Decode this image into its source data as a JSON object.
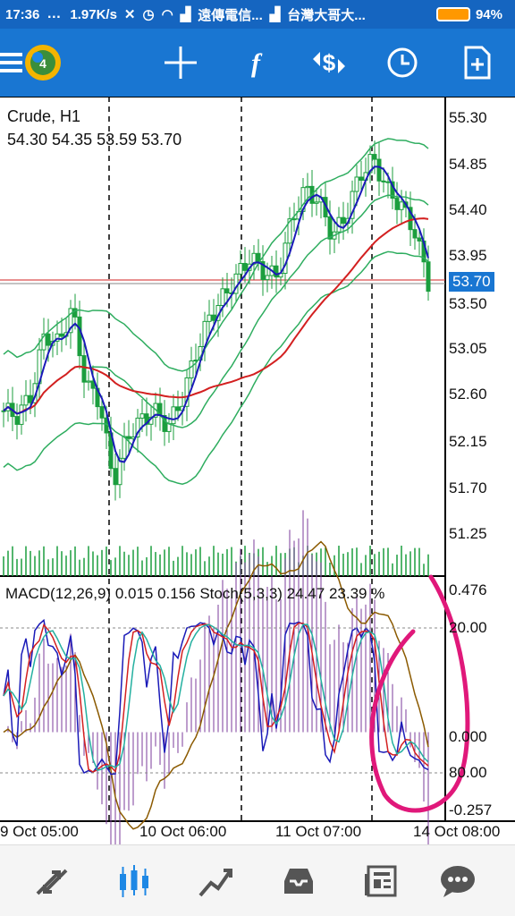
{
  "status_bar": {
    "time": "17:36",
    "net_speed": "1.97K/s",
    "carrier1": "遠傳電信...",
    "carrier2": "台灣大哥大...",
    "battery": "94%"
  },
  "toolbar": {
    "icons": [
      "menu-icon",
      "mt4-logo",
      "crosshair-icon",
      "function-icon",
      "trade-icon",
      "clock-icon",
      "new-document-icon"
    ]
  },
  "chart": {
    "symbol": "Crude, H1",
    "ohlc": "54.30 54.35 53.59 53.70",
    "price_axis": [
      "55.30",
      "54.85",
      "54.40",
      "53.95",
      "53.50",
      "53.05",
      "52.60",
      "52.15",
      "51.70",
      "51.25"
    ],
    "current_price": "53.70",
    "indicator_label": "MACD(12,26,9) 0.015 0.156 Stoch(5,3,3) 24.47 23.39 %",
    "indicator_axis": [
      "0.476",
      "20.00",
      "0.000",
      "80.00",
      "-0.257"
    ],
    "time_axis": [
      "9 Oct 05:00",
      "10 Oct 06:00",
      "11 Oct 07:00",
      "14 Oct 08:00"
    ],
    "colors": {
      "bollinger": "#2EAD5F",
      "ma_fast": "#1A1AB8",
      "ma_slow": "#D32020",
      "candles": "#1B9E3E",
      "macd_hist": "#7B3B9B",
      "stoch_main": "#1A1AB8",
      "stoch_signal": "#D32020",
      "macd_line": "#23B0A0",
      "macd_signal": "#8B5A00",
      "annotation": "#E0187A",
      "price_tag": "#1976D2"
    }
  },
  "chart_data": {
    "type": "candlestick",
    "title": "Crude, H1",
    "ylim": [
      51.0,
      55.5
    ],
    "price_levels": [
      55.3,
      54.85,
      54.4,
      53.95,
      53.5,
      53.05,
      52.6,
      52.15,
      51.7,
      51.25
    ],
    "last_close": 53.7,
    "x": [
      "9 Oct 05:00",
      "10 Oct 06:00",
      "11 Oct 07:00",
      "14 Oct 08:00"
    ],
    "macd": {
      "main": 0.015,
      "signal": 0.156,
      "range": [
        -0.257,
        0.476
      ]
    },
    "stochastic": {
      "k": 24.47,
      "d": 23.39,
      "levels": [
        20.0,
        80.0
      ]
    }
  },
  "bottom_nav": {
    "items": [
      "quotes-icon",
      "chart-icon",
      "trade-icon",
      "history-icon",
      "news-icon",
      "chat-icon"
    ]
  }
}
